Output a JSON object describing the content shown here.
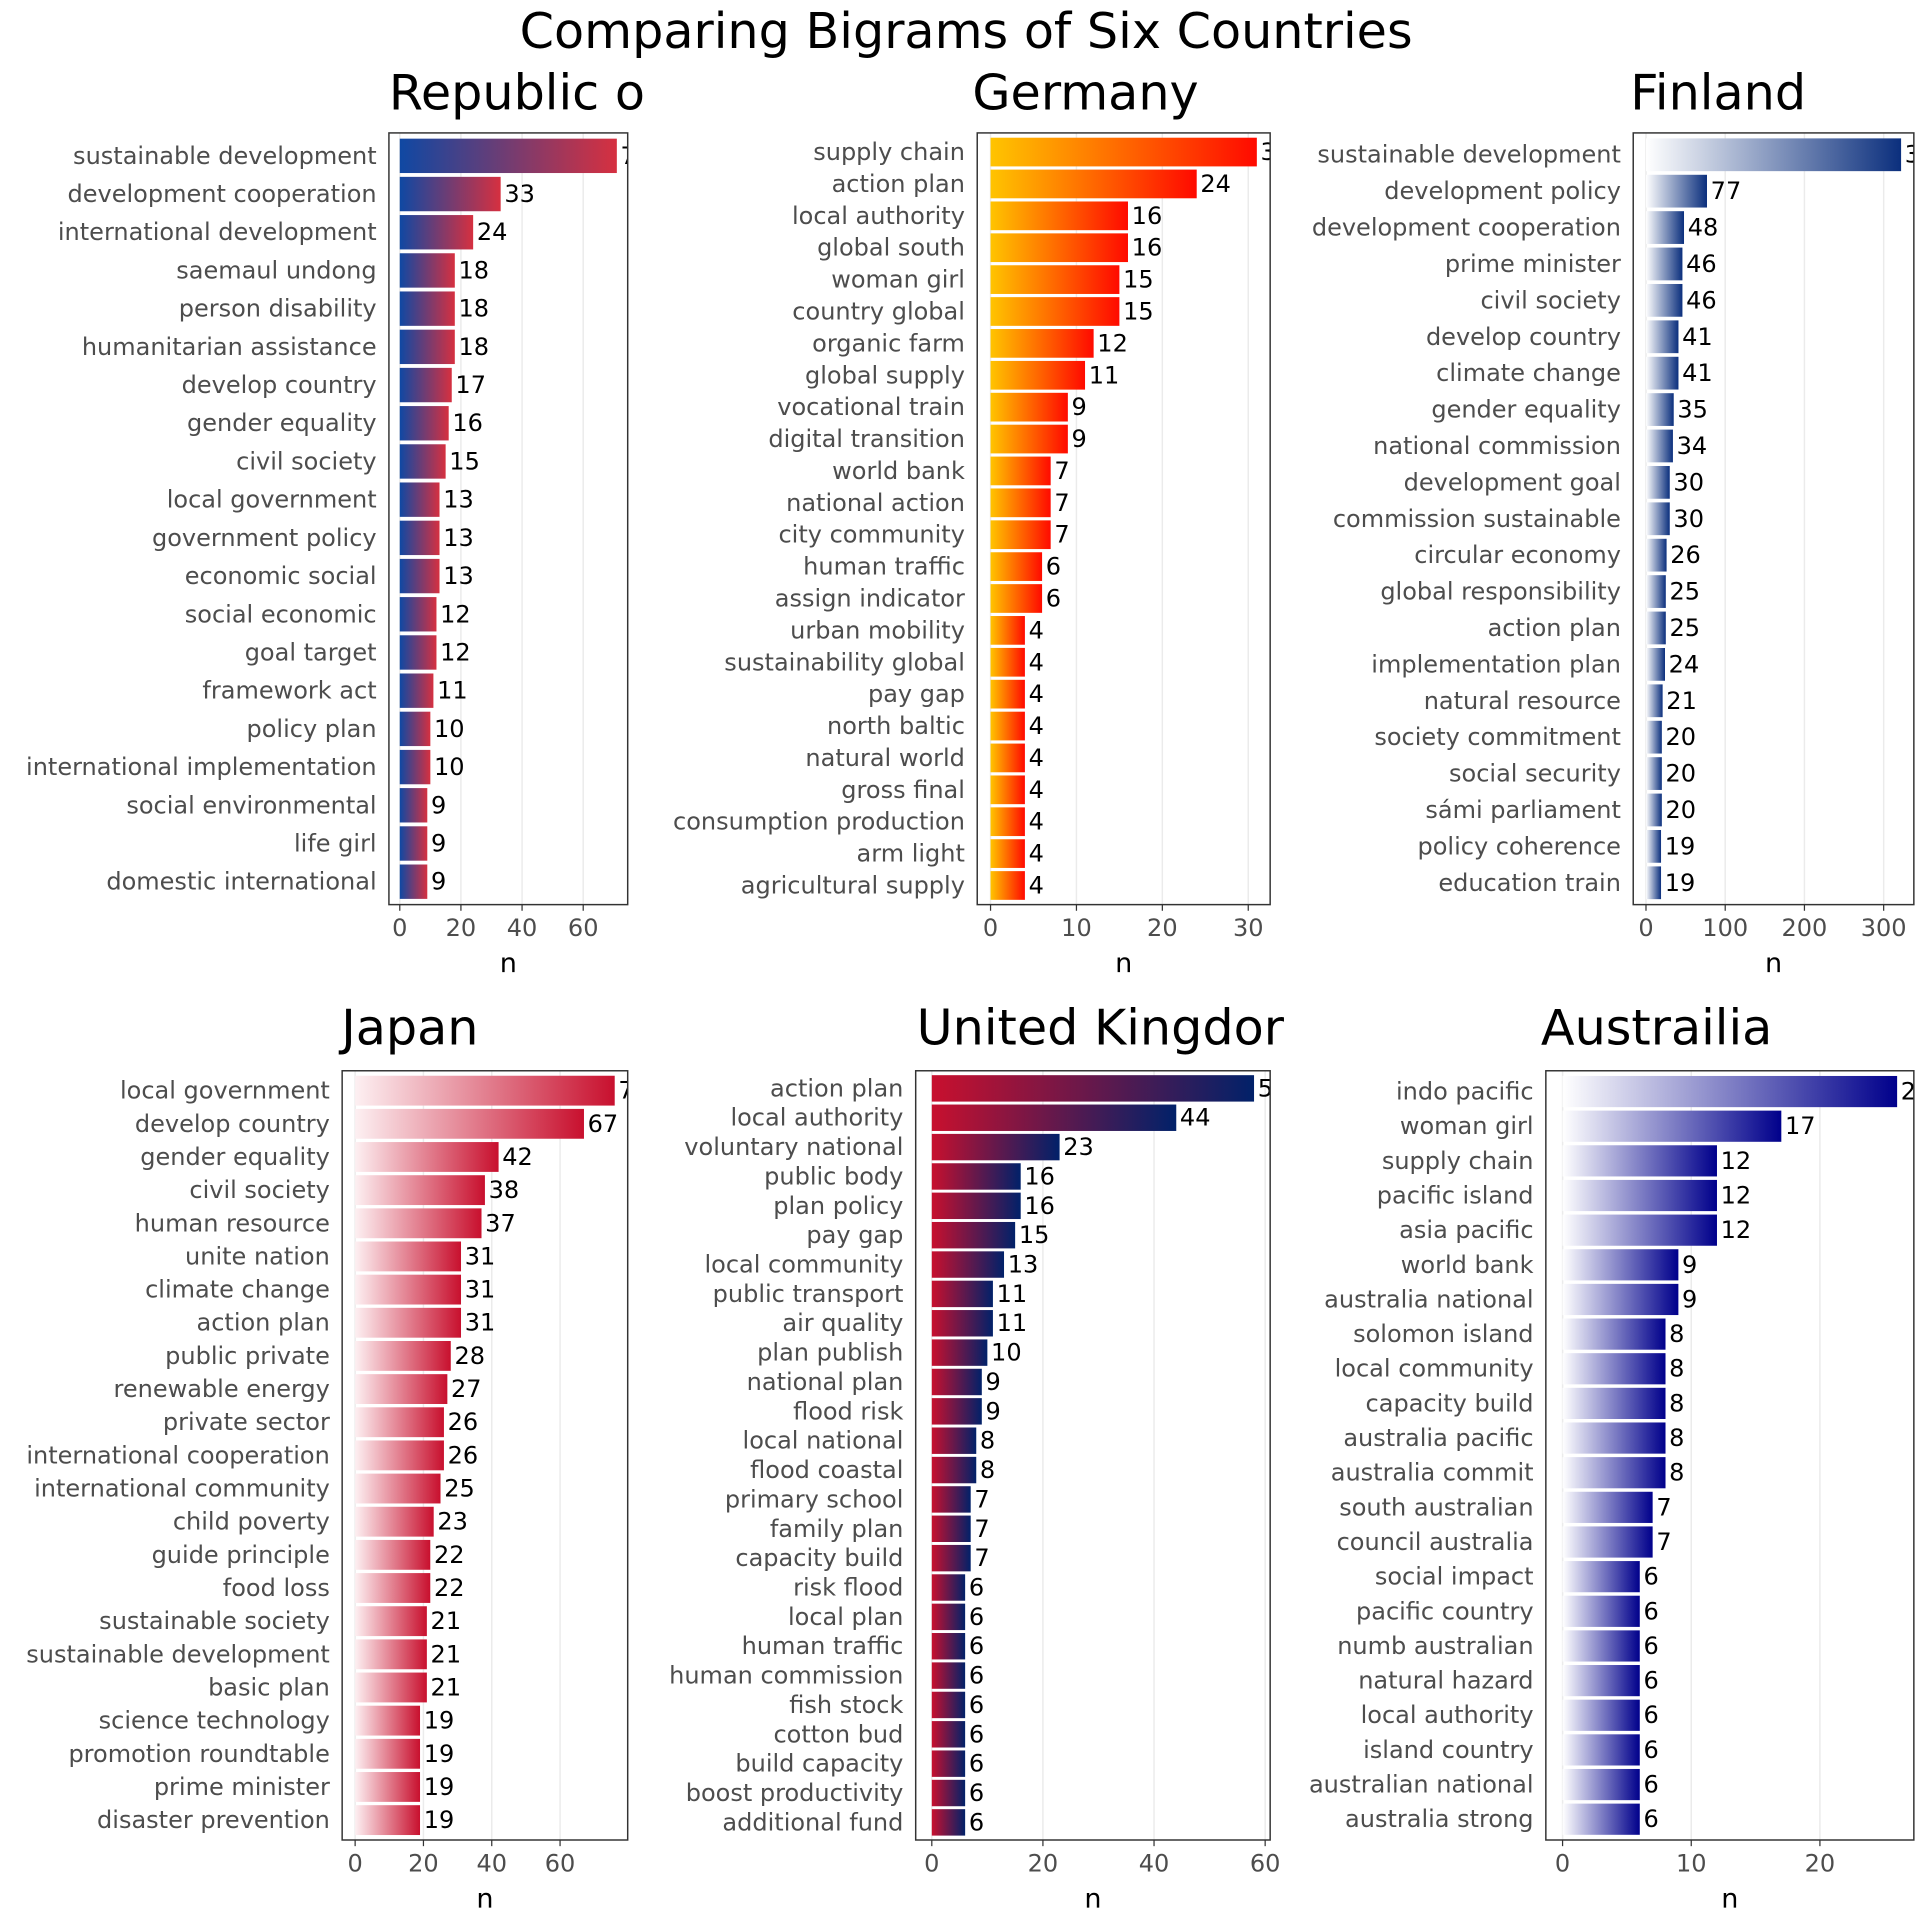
{
  "title": "Comparing Bigrams of Six Countries",
  "chart_data": [
    {
      "type": "bar",
      "orientation": "horizontal",
      "title": "Republic o",
      "x_label": "n",
      "categories": [
        "sustainable development",
        "development cooperation",
        "international development",
        "saemaul undong",
        "person disability",
        "humanitarian assistance",
        "develop country",
        "gender equality",
        "civil society",
        "local government",
        "government policy",
        "economic social",
        "social economic",
        "goal target",
        "framework act",
        "policy plan",
        "international implementation",
        "social environmental",
        "life girl",
        "domestic international"
      ],
      "values": [
        71,
        33,
        24,
        18,
        18,
        18,
        17,
        16,
        15,
        13,
        13,
        13,
        12,
        12,
        11,
        10,
        10,
        9,
        9,
        9
      ],
      "xlim": [
        -3.55,
        74.55
      ],
      "xticks": [
        0,
        20,
        40,
        60
      ],
      "grid": true,
      "gradient": [
        "#0f48a3",
        "#d63040"
      ]
    },
    {
      "type": "bar",
      "orientation": "horizontal",
      "title": "Germany",
      "x_label": "n",
      "categories": [
        "supply chain",
        "action plan",
        "local authority",
        "global south",
        "woman girl",
        "country global",
        "organic farm",
        "global supply",
        "vocational train",
        "digital transition",
        "world bank",
        "national action",
        "city community",
        "human traffic",
        "assign indicator",
        "urban mobility",
        "sustainability global",
        "pay gap",
        "north baltic",
        "natural world",
        "gross final",
        "consumption production",
        "arm light",
        "agricultural supply"
      ],
      "values": [
        31,
        24,
        16,
        16,
        15,
        15,
        12,
        11,
        9,
        9,
        7,
        7,
        7,
        6,
        6,
        4,
        4,
        4,
        4,
        4,
        4,
        4,
        4,
        4
      ],
      "xlim": [
        -1.55,
        32.55
      ],
      "xticks": [
        0,
        10,
        20,
        30
      ],
      "grid": true,
      "gradient": [
        "#ffc400",
        "#ff0a00"
      ]
    },
    {
      "type": "bar",
      "orientation": "horizontal",
      "title": "Finland",
      "x_label": "n",
      "categories": [
        "sustainable development",
        "development policy",
        "development cooperation",
        "prime minister",
        "civil society",
        "develop country",
        "climate change",
        "gender equality",
        "national commission",
        "development goal",
        "commission sustainable",
        "circular economy",
        "global responsibility",
        "action plan",
        "implementation plan",
        "natural resource",
        "society commitment",
        "social security",
        "sámi parliament",
        "policy coherence",
        "education train"
      ],
      "values": [
        322,
        77,
        48,
        46,
        46,
        41,
        41,
        35,
        34,
        30,
        30,
        26,
        25,
        25,
        24,
        21,
        20,
        20,
        20,
        19,
        19
      ],
      "xlim": [
        -16.1,
        338.1
      ],
      "xticks": [
        0,
        100,
        200,
        300
      ],
      "grid": true,
      "gradient": [
        "#ffffff",
        "#0b2f7d"
      ]
    },
    {
      "type": "bar",
      "orientation": "horizontal",
      "title": "Japan",
      "x_label": "n",
      "categories": [
        "local government",
        "develop country",
        "gender equality",
        "civil society",
        "human resource",
        "unite nation",
        "climate change",
        "action plan",
        "public private",
        "renewable energy",
        "private sector",
        "international cooperation",
        "international community",
        "child poverty",
        "guide principle",
        "food loss",
        "sustainable society",
        "sustainable development",
        "basic plan",
        "science technology",
        "promotion roundtable",
        "prime minister",
        "disaster prevention"
      ],
      "values": [
        76,
        67,
        42,
        38,
        37,
        31,
        31,
        31,
        28,
        27,
        26,
        26,
        25,
        23,
        22,
        22,
        21,
        21,
        21,
        19,
        19,
        19,
        19
      ],
      "xlim": [
        -3.8,
        79.8
      ],
      "xticks": [
        0,
        20,
        40,
        60
      ],
      "grid": true,
      "gradient": [
        "#fdf0f2",
        "#c8102e"
      ]
    },
    {
      "type": "bar",
      "orientation": "horizontal",
      "title": "United Kingdor",
      "x_label": "n",
      "categories": [
        "action plan",
        "local authority",
        "voluntary national",
        "public body",
        "plan policy",
        "pay gap",
        "local community",
        "public transport",
        "air quality",
        "plan publish",
        "national plan",
        "flood risk",
        "local national",
        "flood coastal",
        "primary school",
        "family plan",
        "capacity build",
        "risk flood",
        "local plan",
        "human traffic",
        "human commission",
        "fish stock",
        "cotton bud",
        "build capacity",
        "boost productivity",
        "additional fund"
      ],
      "values": [
        58,
        44,
        23,
        16,
        16,
        15,
        13,
        11,
        11,
        10,
        9,
        9,
        8,
        8,
        7,
        7,
        7,
        6,
        6,
        6,
        6,
        6,
        6,
        6,
        6,
        6
      ],
      "xlim": [
        -2.9,
        60.9
      ],
      "xticks": [
        0,
        20,
        40,
        60
      ],
      "grid": true,
      "gradient": [
        "#c8102e",
        "#012169"
      ]
    },
    {
      "type": "bar",
      "orientation": "horizontal",
      "title": "Austrailia",
      "x_label": "n",
      "categories": [
        "indo pacific",
        "woman girl",
        "supply chain",
        "pacific island",
        "asia pacific",
        "world bank",
        "australia national",
        "solomon island",
        "local community",
        "capacity build",
        "australia pacific",
        "australia commit",
        "south australian",
        "council australia",
        "social impact",
        "pacific country",
        "numb australian",
        "natural hazard",
        "local authority",
        "island country",
        "australian national",
        "australia strong"
      ],
      "values": [
        26,
        17,
        12,
        12,
        12,
        9,
        9,
        8,
        8,
        8,
        8,
        8,
        7,
        7,
        6,
        6,
        6,
        6,
        6,
        6,
        6,
        6
      ],
      "xlim": [
        -1.3,
        27.3
      ],
      "xticks": [
        0,
        10,
        20
      ],
      "grid": true,
      "gradient": [
        "#ffffff",
        "#00008b"
      ]
    }
  ]
}
